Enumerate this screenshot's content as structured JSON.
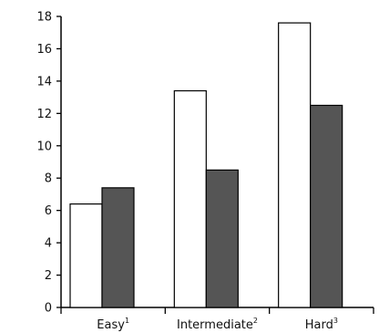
{
  "chart_data": {
    "type": "bar",
    "categories": [
      "Easy",
      "Intermediate",
      "Hard"
    ],
    "category_superscripts": [
      "1",
      "2",
      "3"
    ],
    "series": [
      {
        "values": [
          6.4,
          13.4,
          17.6
        ],
        "color": "#ffffff"
      },
      {
        "values": [
          7.4,
          8.5,
          12.5
        ],
        "color": "#555555"
      }
    ],
    "ylim": [
      0,
      18
    ],
    "yticks": [
      0,
      2,
      4,
      6,
      8,
      10,
      12,
      14,
      16,
      18
    ],
    "grid": false,
    "legend": "none"
  }
}
